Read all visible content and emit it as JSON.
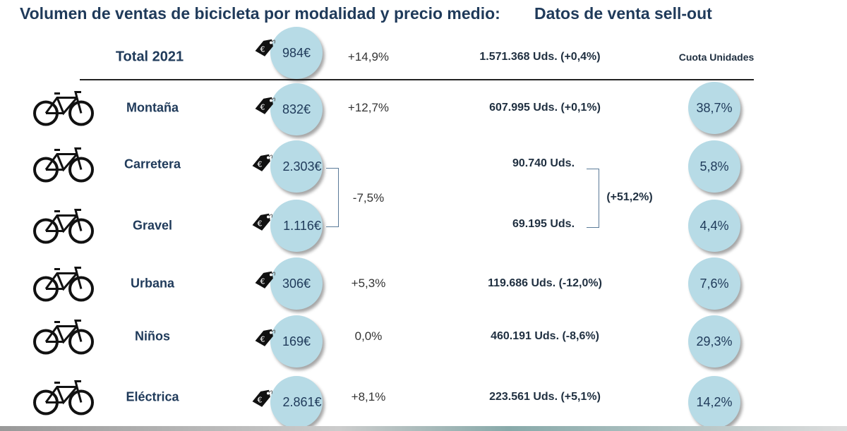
{
  "title": "Volumen de ventas de bicicleta por modalidad y precio medio:",
  "subtitle": "Datos de venta sell-out",
  "colors": {
    "circle": "#b7dbe6",
    "text": "#1f3a5a"
  },
  "total": {
    "label": "Total 2021",
    "price": "984€",
    "change": "+14,9%",
    "units": "1.571.368 Uds. (+0,4%)",
    "share_header": "Cuota Unidades"
  },
  "rows": [
    {
      "icon": "mountain-bike-icon",
      "label": "Montaña",
      "price": "832€",
      "change": "+12,7%",
      "units": "607.995 Uds. (+0,1%)",
      "share": "38,7%"
    },
    {
      "icon": "road-bike-icon",
      "label": "Carretera",
      "price": "2.303€",
      "change": "",
      "units": "90.740 Uds.",
      "share": "5,8%"
    },
    {
      "icon": "gravel-bike-icon",
      "label": "Gravel",
      "price": "1.116€",
      "change": "",
      "units": "69.195 Uds.",
      "share": "4,4%"
    },
    {
      "icon": "folding-bike-icon",
      "label": "Urbana",
      "price": "306€",
      "change": "+5,3%",
      "units": "119.686 Uds. (-12,0%)",
      "share": "7,6%"
    },
    {
      "icon": "kids-bike-icon",
      "label": "Niños",
      "price": "169€",
      "change": "0,0%",
      "units": "460.191 Uds. (-8,6%)",
      "share": "29,3%"
    },
    {
      "icon": "electric-bike-icon",
      "label": "Eléctrica",
      "price": "2.861€",
      "change": "+8,1%",
      "units": "223.561 Uds. (+5,1%)",
      "share": "14,2%"
    }
  ],
  "combined": {
    "price_change": "-7,5%",
    "units_change": "(+51,2%)"
  }
}
